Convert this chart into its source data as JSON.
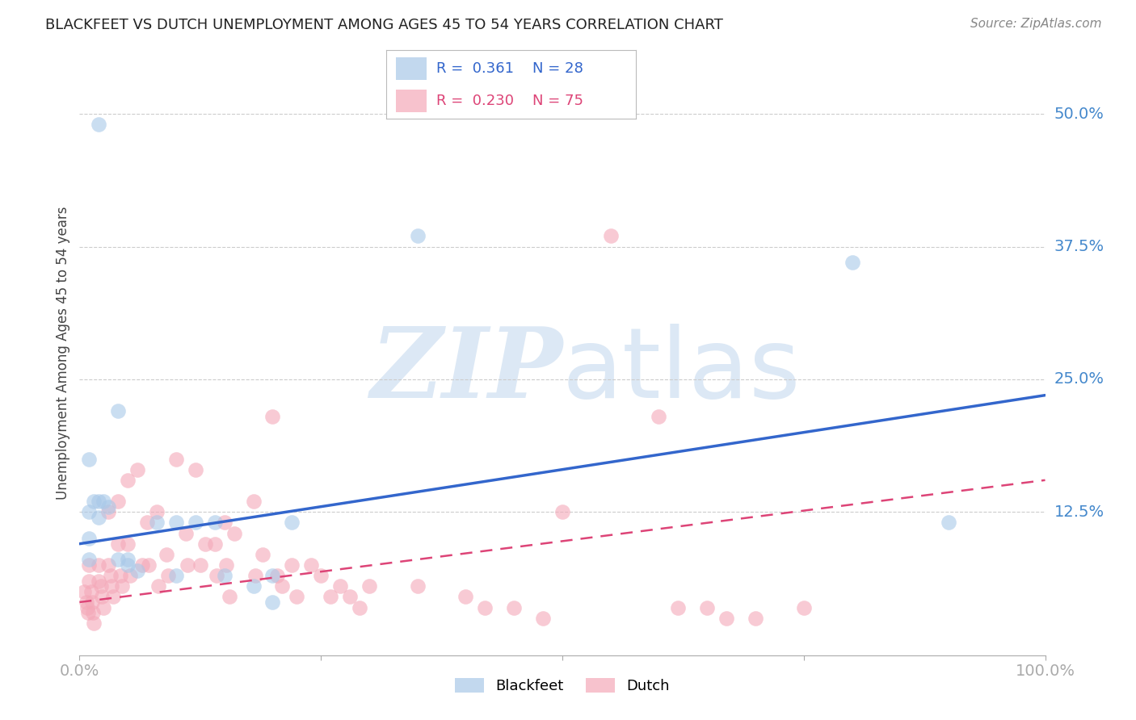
{
  "title": "BLACKFEET VS DUTCH UNEMPLOYMENT AMONG AGES 45 TO 54 YEARS CORRELATION CHART",
  "source": "Source: ZipAtlas.com",
  "ylabel": "Unemployment Among Ages 45 to 54 years",
  "ytick_labels": [
    "50.0%",
    "37.5%",
    "25.0%",
    "12.5%"
  ],
  "ytick_values": [
    0.5,
    0.375,
    0.25,
    0.125
  ],
  "xlim": [
    0.0,
    1.0
  ],
  "ylim": [
    -0.01,
    0.56
  ],
  "legend_label_blue": "Blackfeet",
  "legend_label_pink": "Dutch",
  "blue_color": "#a8c8e8",
  "pink_color": "#f4a8b8",
  "blue_line_color": "#3366cc",
  "pink_line_color": "#dd4477",
  "grid_color": "#cccccc",
  "axis_label_color": "#444444",
  "tick_color": "#4488cc",
  "blue_scatter_x": [
    0.02,
    0.04,
    0.01,
    0.015,
    0.02,
    0.025,
    0.03,
    0.01,
    0.02,
    0.01,
    0.01,
    0.04,
    0.05,
    0.05,
    0.06,
    0.08,
    0.1,
    0.1,
    0.12,
    0.14,
    0.15,
    0.18,
    0.2,
    0.2,
    0.22,
    0.35,
    0.8,
    0.9
  ],
  "blue_scatter_y": [
    0.49,
    0.22,
    0.175,
    0.135,
    0.135,
    0.135,
    0.13,
    0.125,
    0.12,
    0.1,
    0.08,
    0.08,
    0.08,
    0.075,
    0.07,
    0.115,
    0.115,
    0.065,
    0.115,
    0.115,
    0.065,
    0.055,
    0.065,
    0.04,
    0.115,
    0.385,
    0.36,
    0.115
  ],
  "pink_scatter_x": [
    0.005,
    0.007,
    0.008,
    0.009,
    0.01,
    0.01,
    0.012,
    0.013,
    0.014,
    0.015,
    0.02,
    0.02,
    0.022,
    0.023,
    0.025,
    0.03,
    0.03,
    0.032,
    0.033,
    0.035,
    0.04,
    0.04,
    0.042,
    0.044,
    0.05,
    0.05,
    0.052,
    0.06,
    0.065,
    0.07,
    0.072,
    0.08,
    0.082,
    0.09,
    0.092,
    0.1,
    0.11,
    0.112,
    0.12,
    0.125,
    0.13,
    0.14,
    0.142,
    0.15,
    0.152,
    0.155,
    0.16,
    0.18,
    0.182,
    0.19,
    0.2,
    0.205,
    0.21,
    0.22,
    0.225,
    0.24,
    0.25,
    0.26,
    0.27,
    0.28,
    0.29,
    0.3,
    0.35,
    0.4,
    0.42,
    0.45,
    0.48,
    0.5,
    0.55,
    0.6,
    0.62,
    0.65,
    0.67,
    0.7,
    0.75
  ],
  "pink_scatter_y": [
    0.05,
    0.04,
    0.035,
    0.03,
    0.075,
    0.06,
    0.05,
    0.04,
    0.03,
    0.02,
    0.075,
    0.06,
    0.055,
    0.045,
    0.035,
    0.125,
    0.075,
    0.065,
    0.055,
    0.045,
    0.135,
    0.095,
    0.065,
    0.055,
    0.155,
    0.095,
    0.065,
    0.165,
    0.075,
    0.115,
    0.075,
    0.125,
    0.055,
    0.085,
    0.065,
    0.175,
    0.105,
    0.075,
    0.165,
    0.075,
    0.095,
    0.095,
    0.065,
    0.115,
    0.075,
    0.045,
    0.105,
    0.135,
    0.065,
    0.085,
    0.215,
    0.065,
    0.055,
    0.075,
    0.045,
    0.075,
    0.065,
    0.045,
    0.055,
    0.045,
    0.035,
    0.055,
    0.055,
    0.045,
    0.035,
    0.035,
    0.025,
    0.125,
    0.385,
    0.215,
    0.035,
    0.035,
    0.025,
    0.025,
    0.035
  ],
  "blue_line_x": [
    0.0,
    1.0
  ],
  "blue_line_y": [
    0.095,
    0.235
  ],
  "pink_line_x": [
    0.0,
    1.0
  ],
  "pink_line_y": [
    0.04,
    0.155
  ]
}
